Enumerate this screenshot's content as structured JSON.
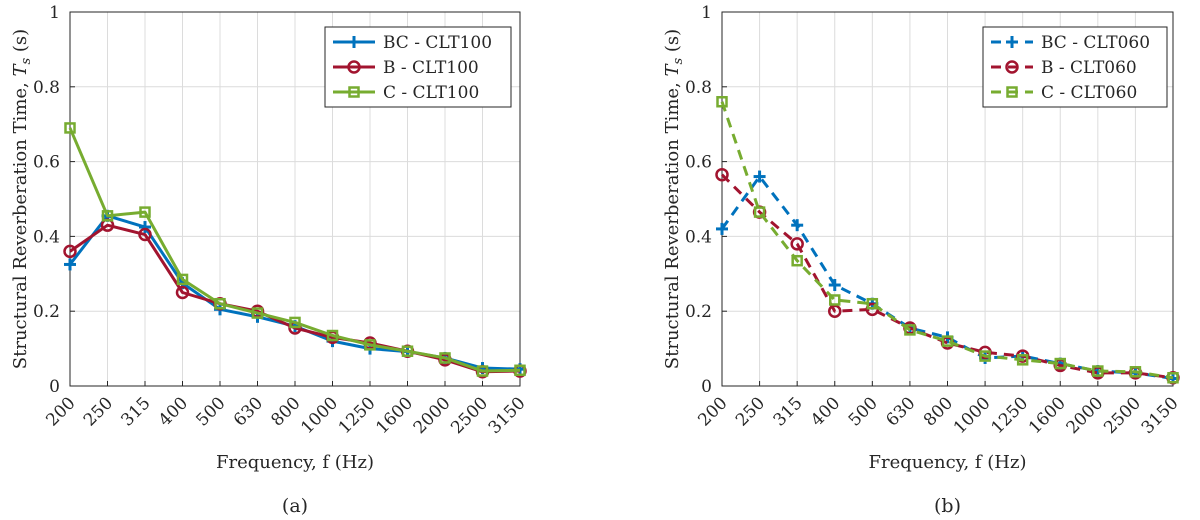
{
  "chart_data": [
    {
      "type": "line",
      "caption": "(a)",
      "xlabel": "Frequency, f (Hz)",
      "ylabel": "Structural Reverberation Time, ",
      "ylabel_symbol": "T",
      "ylabel_subscript": "s",
      "ylabel_unit": " (s)",
      "categories": [
        "200",
        "250",
        "315",
        "400",
        "500",
        "630",
        "800",
        "1000",
        "1250",
        "1600",
        "2000",
        "2500",
        "3150"
      ],
      "ylim": [
        0,
        1
      ],
      "yticks": [
        "0",
        "0.2",
        "0.4",
        "0.6",
        "0.8",
        "1"
      ],
      "grid": true,
      "legend_position": "top-right",
      "series": [
        {
          "name": "BC - CLT100",
          "color": "#0072BD",
          "marker": "plus",
          "line_style": "solid",
          "values": [
            0.325,
            0.455,
            0.425,
            0.275,
            0.205,
            0.185,
            0.16,
            0.12,
            0.1,
            0.092,
            0.075,
            0.048,
            0.045
          ]
        },
        {
          "name": "B - CLT100",
          "color": "#A2142F",
          "marker": "circle",
          "line_style": "solid",
          "values": [
            0.36,
            0.43,
            0.405,
            0.25,
            0.22,
            0.2,
            0.155,
            0.13,
            0.115,
            0.093,
            0.07,
            0.038,
            0.04
          ]
        },
        {
          "name": "C - CLT100",
          "color": "#77AC30",
          "marker": "square",
          "line_style": "solid",
          "values": [
            0.69,
            0.455,
            0.465,
            0.285,
            0.22,
            0.195,
            0.17,
            0.135,
            0.11,
            0.093,
            0.075,
            0.04,
            0.042
          ]
        }
      ]
    },
    {
      "type": "line",
      "caption": "(b)",
      "xlabel": "Frequency, f (Hz)",
      "ylabel": "Structural Reverberation Time, ",
      "ylabel_symbol": "T",
      "ylabel_subscript": "s",
      "ylabel_unit": " (s)",
      "categories": [
        "200",
        "250",
        "315",
        "400",
        "500",
        "630",
        "800",
        "1000",
        "1250",
        "1600",
        "2000",
        "2500",
        "3150"
      ],
      "ylim": [
        0,
        1
      ],
      "yticks": [
        "0",
        "0.2",
        "0.4",
        "0.6",
        "0.8",
        "1"
      ],
      "grid": true,
      "legend_position": "top-right",
      "series": [
        {
          "name": "BC - CLT060",
          "color": "#0072BD",
          "marker": "plus",
          "line_style": "dashed",
          "values": [
            0.42,
            0.56,
            0.43,
            0.27,
            0.22,
            0.155,
            0.13,
            0.075,
            0.08,
            0.06,
            0.04,
            0.035,
            0.02
          ]
        },
        {
          "name": "B - CLT060",
          "color": "#A2142F",
          "marker": "circle",
          "line_style": "dashed",
          "values": [
            0.565,
            0.465,
            0.38,
            0.2,
            0.205,
            0.155,
            0.115,
            0.09,
            0.08,
            0.055,
            0.035,
            0.035,
            0.022
          ]
        },
        {
          "name": "C - CLT060",
          "color": "#77AC30",
          "marker": "square",
          "line_style": "dashed",
          "values": [
            0.76,
            0.465,
            0.335,
            0.23,
            0.22,
            0.15,
            0.12,
            0.08,
            0.07,
            0.06,
            0.04,
            0.038,
            0.022
          ]
        }
      ]
    }
  ]
}
